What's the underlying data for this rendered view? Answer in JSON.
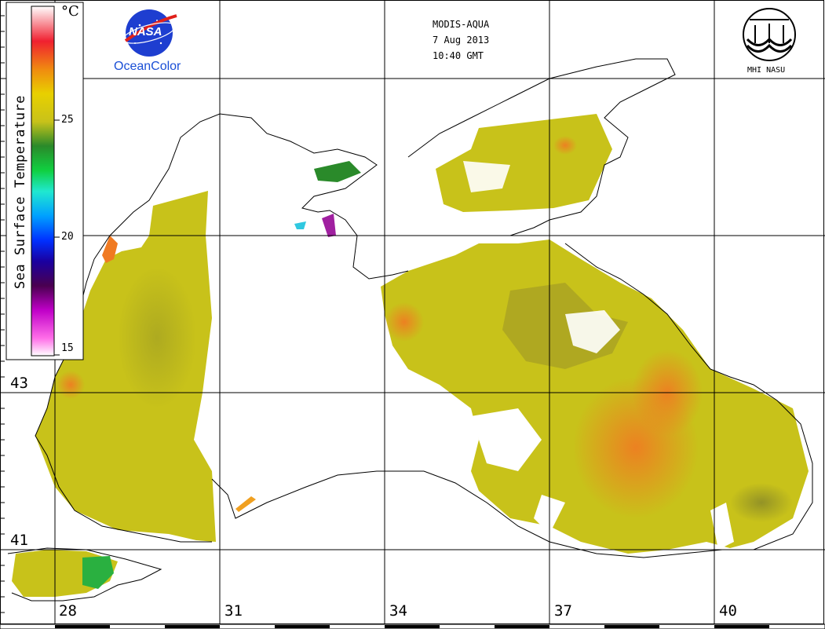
{
  "header": {
    "sensor": "MODIS-AQUA",
    "date": "7 Aug 2013",
    "time": "10:40 GMT"
  },
  "logos": {
    "nasa_text": "NASA",
    "oceancolor_text": "OceanColor",
    "mhi_text": "MHI NASU"
  },
  "colorbar": {
    "title": "Sea Surface Temperature",
    "unit": "°C",
    "ticks": [
      "25",
      "20",
      "15"
    ],
    "tick_values": [
      25,
      20,
      15
    ],
    "range": [
      15,
      30
    ]
  },
  "map": {
    "longitude_labels": [
      "28",
      "31",
      "34",
      "37",
      "40"
    ],
    "longitude_values": [
      28,
      31,
      34,
      37,
      40
    ],
    "latitude_labels": [
      "43",
      "41"
    ],
    "latitude_values": [
      43,
      41
    ],
    "colors": {
      "land": "#ffffff",
      "cloud": "#ffffff",
      "grid": "#000000",
      "coast": "#000000",
      "sst_cool": "#2a8a2a",
      "sst_base": "#c8c21a",
      "sst_warm": "#f07a22"
    }
  }
}
